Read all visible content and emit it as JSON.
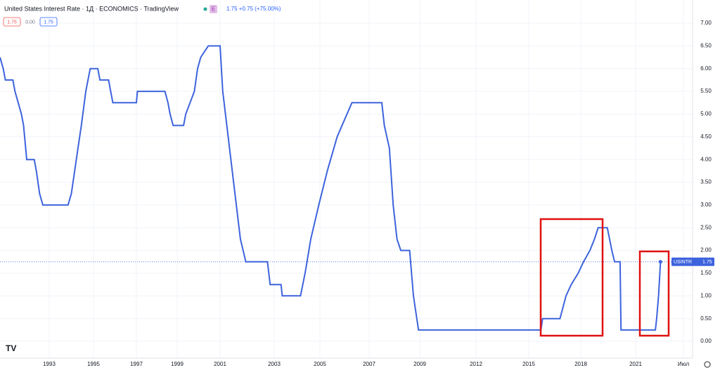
{
  "chart_data": {
    "type": "line",
    "title": "United States Interest Rate · 1Д · ECONOMICS · TradingView",
    "badge": "E",
    "change": "1.75 +0.75 (+75.00%)",
    "header_values": [
      "1.75",
      "0.00",
      "1.75"
    ],
    "x": [
      1990.7,
      1990.85,
      1990.95,
      1991.3,
      1991.4,
      1991.55,
      1991.7,
      1991.8,
      1991.95,
      1992.3,
      1992.4,
      1992.55,
      1992.7,
      1993.85,
      1994.0,
      1994.15,
      1994.3,
      1994.45,
      1994.65,
      1994.85,
      1995.2,
      1995.3,
      1995.7,
      1995.8,
      1995.9,
      1997.0,
      1997.05,
      1998.4,
      1998.55,
      1998.65,
      1998.8,
      1999.3,
      1999.4,
      1999.6,
      1999.8,
      1999.95,
      2000.1,
      2000.45,
      2001.0,
      2001.1,
      2001.3,
      2001.45,
      2001.6,
      2001.75,
      2001.95,
      2002.75,
      2002.85,
      2003.3,
      2003.35,
      2004.15,
      2004.35,
      2004.6,
      2004.95,
      2005.3,
      2005.7,
      2006.1,
      2006.3,
      2007.5,
      2007.6,
      2007.8,
      2007.95,
      2008.1,
      2008.25,
      2008.6,
      2008.75,
      2008.95,
      2015.7,
      2015.8,
      2016.8,
      2017.15,
      2017.45,
      2017.85,
      2018.15,
      2018.5,
      2018.75,
      2018.95,
      2019.45,
      2019.7,
      2019.85,
      2020.15,
      2020.2,
      2021.62,
      2021.66,
      2021.72,
      2021.78
    ],
    "series": [
      {
        "name": "USINTR",
        "color": "#3d63dd",
        "values": [
          6.25,
          6.0,
          5.75,
          5.75,
          5.5,
          5.25,
          5.0,
          4.75,
          4.0,
          4.0,
          3.75,
          3.25,
          3.0,
          3.0,
          3.25,
          3.75,
          4.25,
          4.75,
          5.5,
          6.0,
          6.0,
          5.75,
          5.75,
          5.5,
          5.25,
          5.25,
          5.5,
          5.5,
          5.25,
          5.0,
          4.75,
          4.75,
          5.0,
          5.25,
          5.5,
          6.0,
          6.25,
          6.5,
          6.5,
          5.5,
          4.5,
          3.75,
          3.0,
          2.25,
          1.75,
          1.75,
          1.25,
          1.25,
          1.0,
          1.0,
          1.5,
          2.25,
          3.0,
          3.75,
          4.5,
          5.0,
          5.25,
          5.25,
          4.75,
          4.25,
          3.0,
          2.25,
          2.0,
          2.0,
          1.0,
          0.25,
          0.25,
          0.5,
          0.5,
          1.0,
          1.25,
          1.5,
          1.75,
          2.0,
          2.25,
          2.5,
          2.5,
          2.0,
          1.75,
          1.75,
          0.25,
          0.25,
          0.5,
          1.0,
          1.75
        ]
      }
    ],
    "xlim": [
      1990.7,
      2022.8
    ],
    "xticks": [
      1993,
      1995,
      1997,
      1999,
      2001,
      2003,
      2005,
      2007,
      2009,
      2012,
      2015,
      2018,
      2021,
      {
        "value": 2022.5,
        "label": "Июл"
      }
    ],
    "ylim": [
      -0.37,
      7.51
    ],
    "yticks": [
      {
        "value": 0,
        "label": "0.00"
      },
      {
        "value": 0.5,
        "label": "0.50"
      },
      {
        "value": 1,
        "label": "1.00"
      },
      {
        "value": 1.5,
        "label": "1.50"
      },
      {
        "value": 2,
        "label": "2.00"
      },
      {
        "value": 2.5,
        "label": "2.50"
      },
      {
        "value": 3,
        "label": "3.00"
      },
      {
        "value": 3.5,
        "label": "3.50"
      },
      {
        "value": 4,
        "label": "4.00"
      },
      {
        "value": 4.5,
        "label": "4.50"
      },
      {
        "value": 5,
        "label": "5.00"
      },
      {
        "value": 5.5,
        "label": "5.50"
      },
      {
        "value": 6,
        "label": "6.00"
      },
      {
        "value": 6.5,
        "label": "6.50"
      },
      {
        "value": 7,
        "label": "7.00"
      }
    ],
    "grid": true
  }
}
